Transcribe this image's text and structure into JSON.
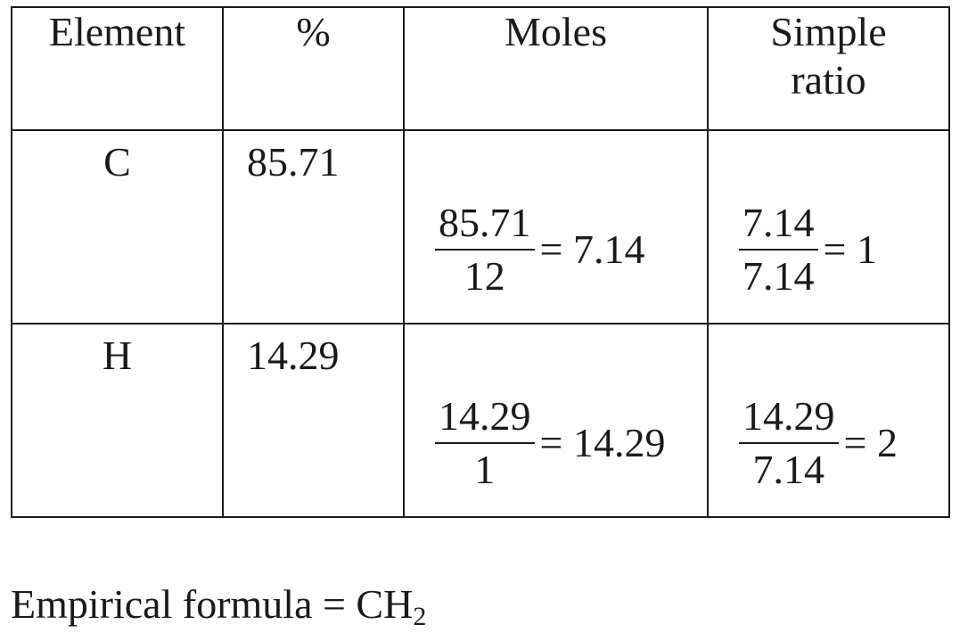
{
  "table": {
    "headers": [
      "Element",
      "%",
      "Moles",
      "Simple ratio"
    ],
    "rows": [
      {
        "element": "C",
        "percent": "85.71",
        "moles": {
          "numerator": "85.71",
          "denominator": "12",
          "result": "= 7.14"
        },
        "ratio": {
          "numerator": "7.14",
          "denominator": "7.14",
          "result": "= 1"
        }
      },
      {
        "element": "H",
        "percent": "14.29",
        "moles": {
          "numerator": "14.29",
          "denominator": "1",
          "result": "= 14.29"
        },
        "ratio": {
          "numerator": "14.29",
          "denominator": "7.14",
          "result": "= 2"
        }
      }
    ]
  },
  "footer": {
    "label": "Empirical formula = CH",
    "subscript": "2"
  }
}
